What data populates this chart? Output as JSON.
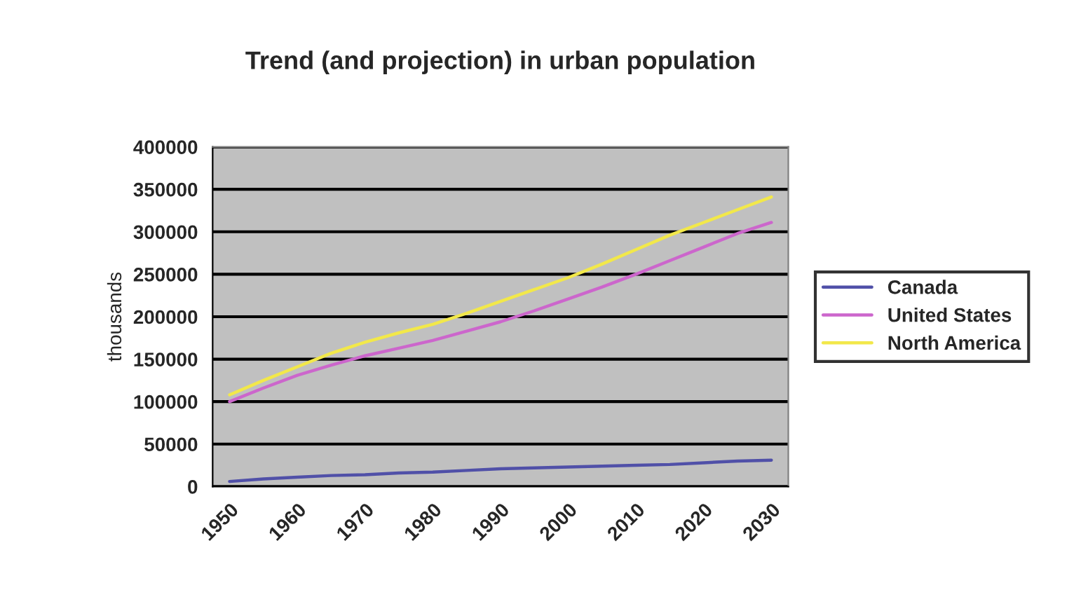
{
  "chart_data": {
    "type": "line",
    "title": "Trend (and projection) in urban population",
    "ylabel": "thousands",
    "categories": [
      "1950",
      null,
      "1960",
      null,
      "1970",
      null,
      "1980",
      null,
      "1990",
      null,
      "2000",
      null,
      "2010",
      null,
      "2020",
      null,
      "2030"
    ],
    "series": [
      {
        "name": "Canada",
        "color": "#5050a8",
        "values": [
          6000,
          9000,
          11000,
          13000,
          14000,
          16000,
          17000,
          19000,
          21000,
          22000,
          23000,
          24000,
          25000,
          26000,
          28000,
          30000,
          31000
        ]
      },
      {
        "name": "United States",
        "color": "#cc66cc",
        "values": [
          100000,
          116000,
          131000,
          143000,
          154000,
          163000,
          172000,
          183000,
          194000,
          207000,
          221000,
          235000,
          250000,
          266000,
          282000,
          298000,
          311000
        ]
      },
      {
        "name": "North America",
        "color": "#f2e84a",
        "values": [
          108000,
          125000,
          141000,
          157000,
          170000,
          181000,
          191000,
          204000,
          218000,
          232000,
          246000,
          262000,
          279000,
          296000,
          311000,
          326000,
          341000
        ]
      }
    ],
    "ylim": [
      0,
      400000
    ],
    "yticks": [
      0,
      50000,
      100000,
      150000,
      200000,
      250000,
      300000,
      350000,
      400000
    ],
    "grid": "y",
    "legend": "right",
    "marker": "none",
    "line_style": "solid"
  }
}
